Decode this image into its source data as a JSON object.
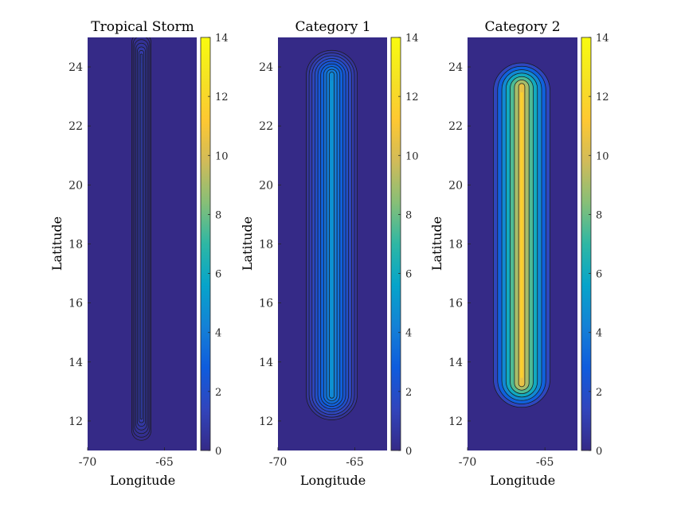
{
  "chart_data": [
    {
      "type": "contour",
      "title": "Tropical Storm",
      "xlabel": "Longitude",
      "ylabel": "Latitude",
      "xlim": [
        -70,
        -62.9
      ],
      "ylim": [
        11,
        25
      ],
      "xticks": [
        {
          "value": -70,
          "label": "-70"
        },
        {
          "value": -65,
          "label": "-65"
        }
      ],
      "yticks": [
        {
          "value": 12,
          "label": "12"
        },
        {
          "value": 14,
          "label": "14"
        },
        {
          "value": 16,
          "label": "16"
        },
        {
          "value": 18,
          "label": "18"
        },
        {
          "value": 20,
          "label": "20"
        },
        {
          "value": 22,
          "label": "22"
        },
        {
          "value": 24,
          "label": "24"
        }
      ],
      "colorbar": {
        "range": [
          0,
          14
        ],
        "ticks": [
          "0",
          "2",
          "4",
          "6",
          "8",
          "10",
          "12",
          "14"
        ]
      },
      "storm": {
        "center_lon": -66.5,
        "lat_start": 12.2,
        "lat_end": 24.3,
        "peak": 1.1,
        "half_width_deg": 0.7
      },
      "levels": [
        0.12,
        0.25,
        0.4,
        0.55,
        0.7,
        0.85,
        1.0
      ]
    },
    {
      "type": "contour",
      "title": "Category 1",
      "xlabel": "Longitude",
      "ylabel": "Latitude",
      "xlim": [
        -70,
        -62.9
      ],
      "ylim": [
        11,
        25
      ],
      "xticks": [
        {
          "value": -70,
          "label": "-70"
        },
        {
          "value": -65,
          "label": "-65"
        }
      ],
      "yticks": [
        {
          "value": 12,
          "label": "12"
        },
        {
          "value": 14,
          "label": "14"
        },
        {
          "value": 16,
          "label": "16"
        },
        {
          "value": 18,
          "label": "18"
        },
        {
          "value": 20,
          "label": "20"
        },
        {
          "value": 22,
          "label": "22"
        },
        {
          "value": 24,
          "label": "24"
        }
      ],
      "colorbar": {
        "range": [
          0,
          14
        ],
        "ticks": [
          "0",
          "2",
          "4",
          "6",
          "8",
          "10",
          "12",
          "14"
        ]
      },
      "storm": {
        "center_lon": -66.5,
        "lat_start": 12.9,
        "lat_end": 23.7,
        "peak": 4.9,
        "half_width_deg": 1.85
      },
      "levels": [
        0.5,
        1.0,
        1.5,
        2.0,
        2.5,
        3.0,
        3.5,
        4.0,
        4.5
      ]
    },
    {
      "type": "contour",
      "title": "Category 2",
      "xlabel": "Longitude",
      "ylabel": "Latitude",
      "xlim": [
        -70,
        -62.9
      ],
      "ylim": [
        11,
        25
      ],
      "xticks": [
        {
          "value": -70,
          "label": "-70"
        },
        {
          "value": -65,
          "label": "-65"
        }
      ],
      "yticks": [
        {
          "value": 12,
          "label": "12"
        },
        {
          "value": 14,
          "label": "14"
        },
        {
          "value": 16,
          "label": "16"
        },
        {
          "value": 18,
          "label": "18"
        },
        {
          "value": 20,
          "label": "20"
        },
        {
          "value": 22,
          "label": "22"
        },
        {
          "value": 24,
          "label": "24"
        }
      ],
      "colorbar": {
        "range": [
          0,
          14
        ],
        "ticks": [
          "0",
          "2",
          "4",
          "6",
          "8",
          "10",
          "12",
          "14"
        ]
      },
      "storm": {
        "center_lon": -66.5,
        "lat_start": 13.3,
        "lat_end": 23.3,
        "peak": 11.6,
        "half_width_deg": 2.1
      },
      "levels": [
        1.5,
        3.0,
        4.5,
        6.0,
        7.5,
        9.0,
        10.5
      ]
    }
  ],
  "colors": {
    "colormap": "parula",
    "contour_line": "#1a1a1a",
    "axis": "#262626"
  }
}
